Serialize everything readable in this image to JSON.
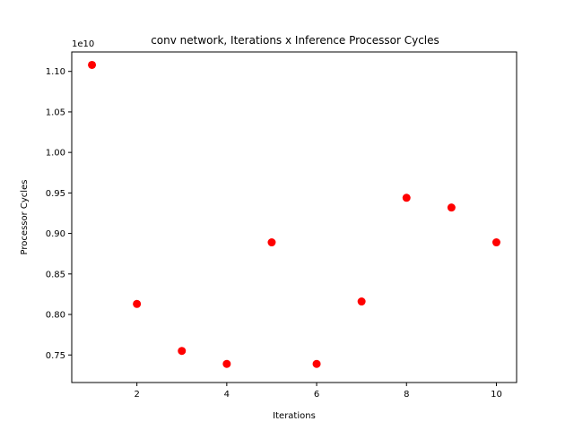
{
  "chart_data": {
    "type": "scatter",
    "title": "conv network, Iterations x Inference Processor Cycles",
    "xlabel": "Iterations",
    "ylabel": "Processor Cycles",
    "y_offset_label": "1e10",
    "x_ticks": [
      2,
      4,
      6,
      8,
      10
    ],
    "x_tick_labels": [
      "2",
      "4",
      "6",
      "8",
      "10"
    ],
    "y_ticks": [
      0.75,
      0.8,
      0.85,
      0.9,
      0.95,
      1.0,
      1.05,
      1.1
    ],
    "y_tick_labels": [
      "0.75",
      "0.80",
      "0.85",
      "0.90",
      "0.95",
      "1.00",
      "1.05",
      "1.10"
    ],
    "xlim": [
      0.55,
      10.45
    ],
    "ylim": [
      0.716,
      1.124
    ],
    "grid": false,
    "marker_color": "#ff0000",
    "x": [
      1,
      2,
      3,
      4,
      5,
      6,
      7,
      8,
      9,
      10
    ],
    "y": [
      1.108,
      0.813,
      0.755,
      0.739,
      0.889,
      0.739,
      0.816,
      0.944,
      0.932,
      0.889
    ]
  }
}
